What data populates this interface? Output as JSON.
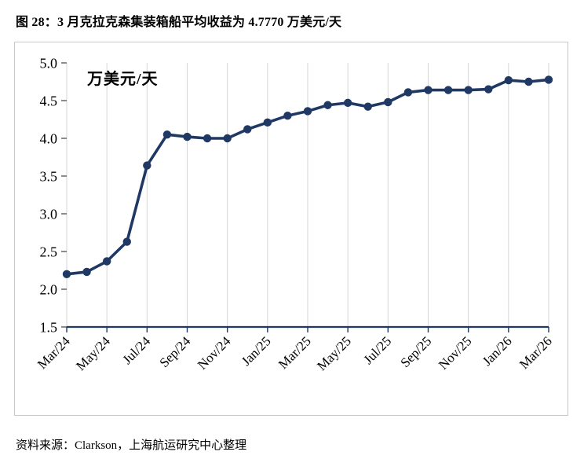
{
  "title": "图 28：3 月克拉克森集装箱船平均收益为 4.7770 万美元/天",
  "source": "资料来源：Clarkson，上海航运研究中心整理",
  "chart_data": {
    "type": "line",
    "title": "图 28：3 月克拉克森集装箱船平均收益为 4.7770 万美元/天",
    "unit_label": "万美元/天",
    "x": [
      "Mar/24",
      "Apr/24",
      "May/24",
      "Jun/24",
      "Jul/24",
      "Aug/24",
      "Sep/24",
      "Oct/24",
      "Nov/24",
      "Dec/24",
      "Jan/25",
      "Feb/25",
      "Mar/25",
      "Apr/25",
      "May/25",
      "Jun/25",
      "Jul/25",
      "Aug/25",
      "Sep/25",
      "Oct/25",
      "Nov/25",
      "Dec/25",
      "Jan/26",
      "Feb/26",
      "Mar/26"
    ],
    "values": [
      2.2,
      2.23,
      2.37,
      2.63,
      3.64,
      4.05,
      4.02,
      4.0,
      4.0,
      4.12,
      4.21,
      4.3,
      4.36,
      4.44,
      4.47,
      4.42,
      4.48,
      4.61,
      4.64,
      4.64,
      4.64,
      4.65,
      4.77,
      4.75,
      4.777
    ],
    "x_tick_step": 2,
    "x_tick_labels": [
      "Mar/24",
      "May/24",
      "Jul/24",
      "Sep/24",
      "Nov/24",
      "Jan/25",
      "Mar/25",
      "May/25",
      "Jul/25",
      "Sep/25",
      "Nov/25",
      "Jan/26",
      "Mar/26"
    ],
    "y_ticks": [
      1.5,
      2.0,
      2.5,
      3.0,
      3.5,
      4.0,
      4.5,
      5.0
    ],
    "ylim": [
      1.5,
      5.0
    ],
    "xlabel": "",
    "ylabel": "",
    "legend": "none",
    "grid": "vertical",
    "line_color": "#1f3864",
    "grid_color": "#d6d6d6",
    "tick_color": "#404040",
    "axis_color": "#1f3864"
  }
}
